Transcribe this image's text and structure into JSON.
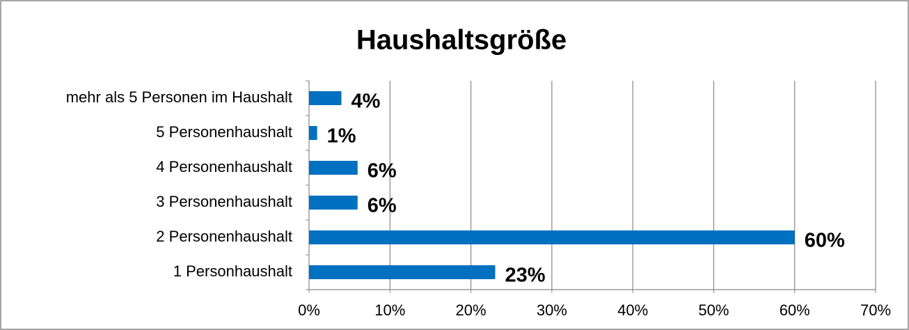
{
  "chart_data": {
    "type": "bar",
    "orientation": "horizontal",
    "title": "Haushaltsgröße",
    "categories": [
      "1 Personhaushalt",
      "2 Personenhaushalt",
      "3 Personenhaushalt",
      "4 Personenhaushalt",
      "5 Personenhaushalt",
      "mehr als 5 Personen im Haushalt"
    ],
    "values": [
      23,
      60,
      6,
      6,
      1,
      4
    ],
    "value_labels": [
      "23%",
      "60%",
      "6%",
      "6%",
      "1%",
      "4%"
    ],
    "color": "#0070c0",
    "xlim": [
      0,
      70
    ],
    "xticks": [
      {
        "value": 0,
        "label": "0%"
      },
      {
        "value": 10,
        "label": "10%"
      },
      {
        "value": 20,
        "label": "20%"
      },
      {
        "value": 30,
        "label": "30%"
      },
      {
        "value": 40,
        "label": "40%"
      },
      {
        "value": 50,
        "label": "50%"
      },
      {
        "value": 60,
        "label": "60%"
      },
      {
        "value": 70,
        "label": "70%"
      }
    ],
    "grid": true
  }
}
